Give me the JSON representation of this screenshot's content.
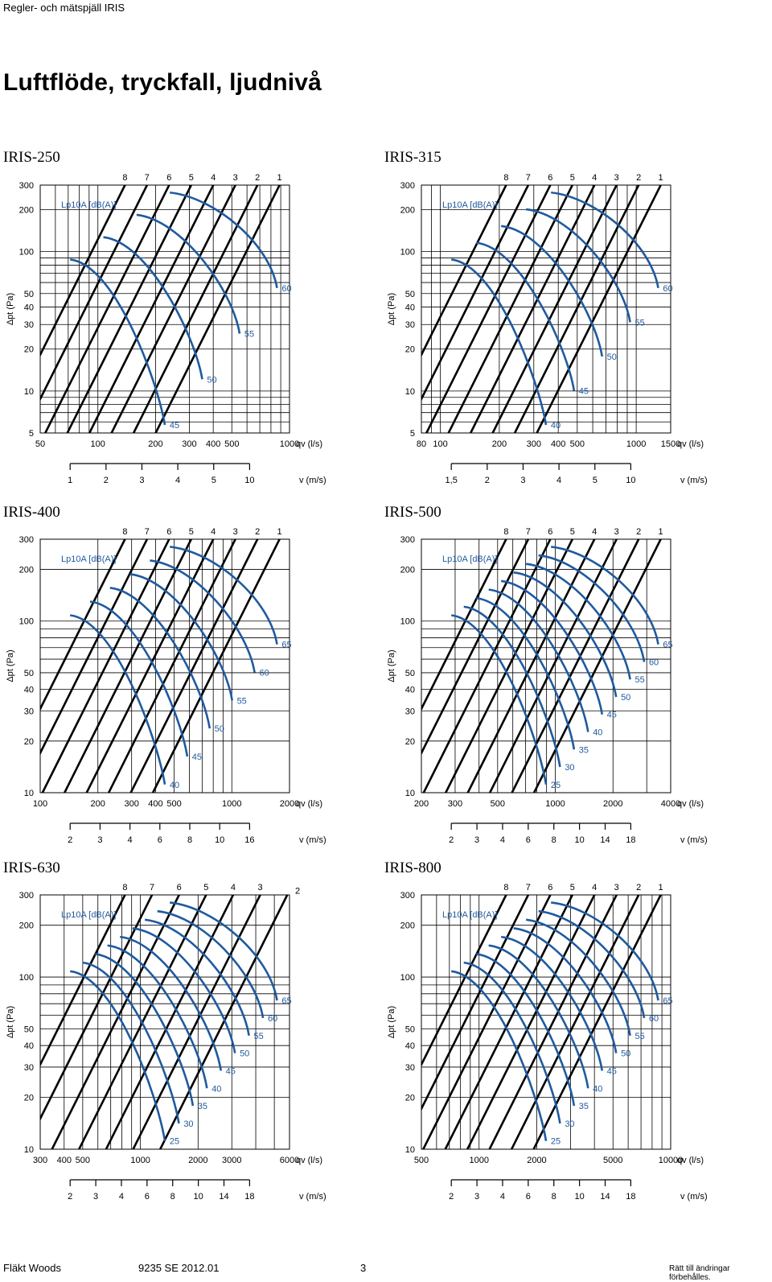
{
  "header": {
    "text": "Regler- och mätspjäll IRIS"
  },
  "page_title": "Luftflöde, tryckfall, ljudnivå",
  "footer": {
    "left": "Fläkt Woods",
    "doc": "9235 SE 2012.01",
    "page": "3",
    "right": "Rätt till ändringar förbehålles."
  },
  "colors": {
    "grid": "#000000",
    "pressure_line": "#000000",
    "sound_curve": "#1f5a9e"
  },
  "chart_data": [
    {
      "title": "IRIS-250",
      "type": "line",
      "xlabel": "qv (l/s)",
      "ylabel": "Δpt (Pa)",
      "vlabel": "v (m/s)",
      "x_scale": "log",
      "y_scale": "log",
      "xlim": [
        50,
        1000
      ],
      "ylim": [
        5,
        300
      ],
      "x_ticks": [
        50,
        100,
        200,
        300,
        400,
        500,
        1000
      ],
      "y_ticks": [
        5,
        10,
        20,
        30,
        40,
        50,
        100,
        200,
        300
      ],
      "v_ticks": [
        "1",
        "2",
        "3",
        "4",
        "5",
        "10"
      ],
      "sound_legend": "Lp10A [dB(A)]",
      "damper_positions": [
        "8",
        "7",
        "6",
        "5",
        "4",
        "3",
        "2",
        "1"
      ],
      "sound_levels": [
        "45",
        "50",
        "55",
        "60"
      ]
    },
    {
      "title": "IRIS-315",
      "type": "line",
      "xlabel": "qv (l/s)",
      "ylabel": "Δpt (Pa)",
      "vlabel": "v (m/s)",
      "x_scale": "log",
      "y_scale": "log",
      "xlim": [
        80,
        1500
      ],
      "ylim": [
        5,
        300
      ],
      "x_ticks": [
        80,
        100,
        200,
        300,
        400,
        500,
        1000,
        1500
      ],
      "y_ticks": [
        5,
        10,
        20,
        30,
        40,
        50,
        100,
        200,
        300
      ],
      "v_ticks": [
        "1,5",
        "2",
        "3",
        "4",
        "5",
        "10"
      ],
      "sound_legend": "Lp10A [dB(A)]",
      "damper_positions": [
        "8",
        "7",
        "6",
        "5",
        "4",
        "3",
        "2",
        "1"
      ],
      "sound_levels": [
        "40",
        "45",
        "50",
        "55",
        "60"
      ]
    },
    {
      "title": "IRIS-400",
      "type": "line",
      "xlabel": "qv (l/s)",
      "ylabel": "Δpt (Pa)",
      "vlabel": "v (m/s)",
      "x_scale": "log",
      "y_scale": "log",
      "xlim": [
        100,
        2000
      ],
      "ylim": [
        10,
        300
      ],
      "x_ticks": [
        100,
        200,
        300,
        400,
        500,
        1000,
        2000
      ],
      "y_ticks": [
        10,
        20,
        30,
        40,
        50,
        100,
        200,
        300
      ],
      "v_ticks": [
        "2",
        "3",
        "4",
        "6",
        "8",
        "10",
        "16"
      ],
      "sound_legend": "Lp10A [dB(A)]",
      "damper_positions": [
        "8",
        "7",
        "6",
        "5",
        "4",
        "3",
        "2",
        "1"
      ],
      "sound_levels": [
        "40",
        "45",
        "50",
        "55",
        "60",
        "65"
      ]
    },
    {
      "title": "IRIS-500",
      "type": "line",
      "xlabel": "qv (l/s)",
      "ylabel": "Δpt (Pa)",
      "vlabel": "v (m/s)",
      "x_scale": "log",
      "y_scale": "log",
      "xlim": [
        200,
        4000
      ],
      "ylim": [
        10,
        300
      ],
      "x_ticks": [
        200,
        300,
        500,
        1000,
        2000,
        4000
      ],
      "y_ticks": [
        10,
        20,
        30,
        40,
        50,
        100,
        200,
        300
      ],
      "v_ticks": [
        "2",
        "3",
        "4",
        "6",
        "8",
        "10",
        "14",
        "18"
      ],
      "sound_legend": "Lp10A [dB(A)]",
      "damper_positions": [
        "8",
        "7",
        "6",
        "5",
        "4",
        "3",
        "2",
        "1"
      ],
      "sound_levels": [
        "25",
        "30",
        "35",
        "40",
        "45",
        "50",
        "55",
        "60",
        "65"
      ]
    },
    {
      "title": "IRIS-630",
      "type": "line",
      "xlabel": "qv (l/s)",
      "ylabel": "Δpt (Pa)",
      "vlabel": "v (m/s)",
      "x_scale": "log",
      "y_scale": "log",
      "xlim": [
        300,
        6000
      ],
      "ylim": [
        10,
        300
      ],
      "x_ticks": [
        300,
        400,
        500,
        1000,
        2000,
        3000,
        6000
      ],
      "y_ticks": [
        10,
        20,
        30,
        40,
        50,
        100,
        200,
        300
      ],
      "v_ticks": [
        "2",
        "3",
        "4",
        "6",
        "8",
        "10",
        "14",
        "18"
      ],
      "sound_legend": "Lp10A [dB(A)]",
      "damper_positions": [
        "8",
        "7",
        "6",
        "5",
        "4",
        "3",
        "2"
      ],
      "sound_levels": [
        "25",
        "30",
        "35",
        "40",
        "45",
        "50",
        "55",
        "60",
        "65"
      ]
    },
    {
      "title": "IRIS-800",
      "type": "line",
      "xlabel": "qv (l/s)",
      "ylabel": "Δpt (Pa)",
      "vlabel": "v (m/s)",
      "x_scale": "log",
      "y_scale": "log",
      "xlim": [
        500,
        10000
      ],
      "ylim": [
        10,
        300
      ],
      "x_ticks": [
        500,
        1000,
        2000,
        5000,
        10000
      ],
      "y_ticks": [
        10,
        20,
        30,
        40,
        50,
        100,
        200,
        300
      ],
      "v_ticks": [
        "2",
        "3",
        "4",
        "6",
        "8",
        "10",
        "14",
        "18"
      ],
      "sound_legend": "Lp10A [dB(A)]",
      "damper_positions": [
        "8",
        "7",
        "6",
        "5",
        "4",
        "3",
        "2",
        "1"
      ],
      "sound_levels": [
        "25",
        "30",
        "35",
        "40",
        "45",
        "50",
        "55",
        "60",
        "65"
      ]
    }
  ]
}
